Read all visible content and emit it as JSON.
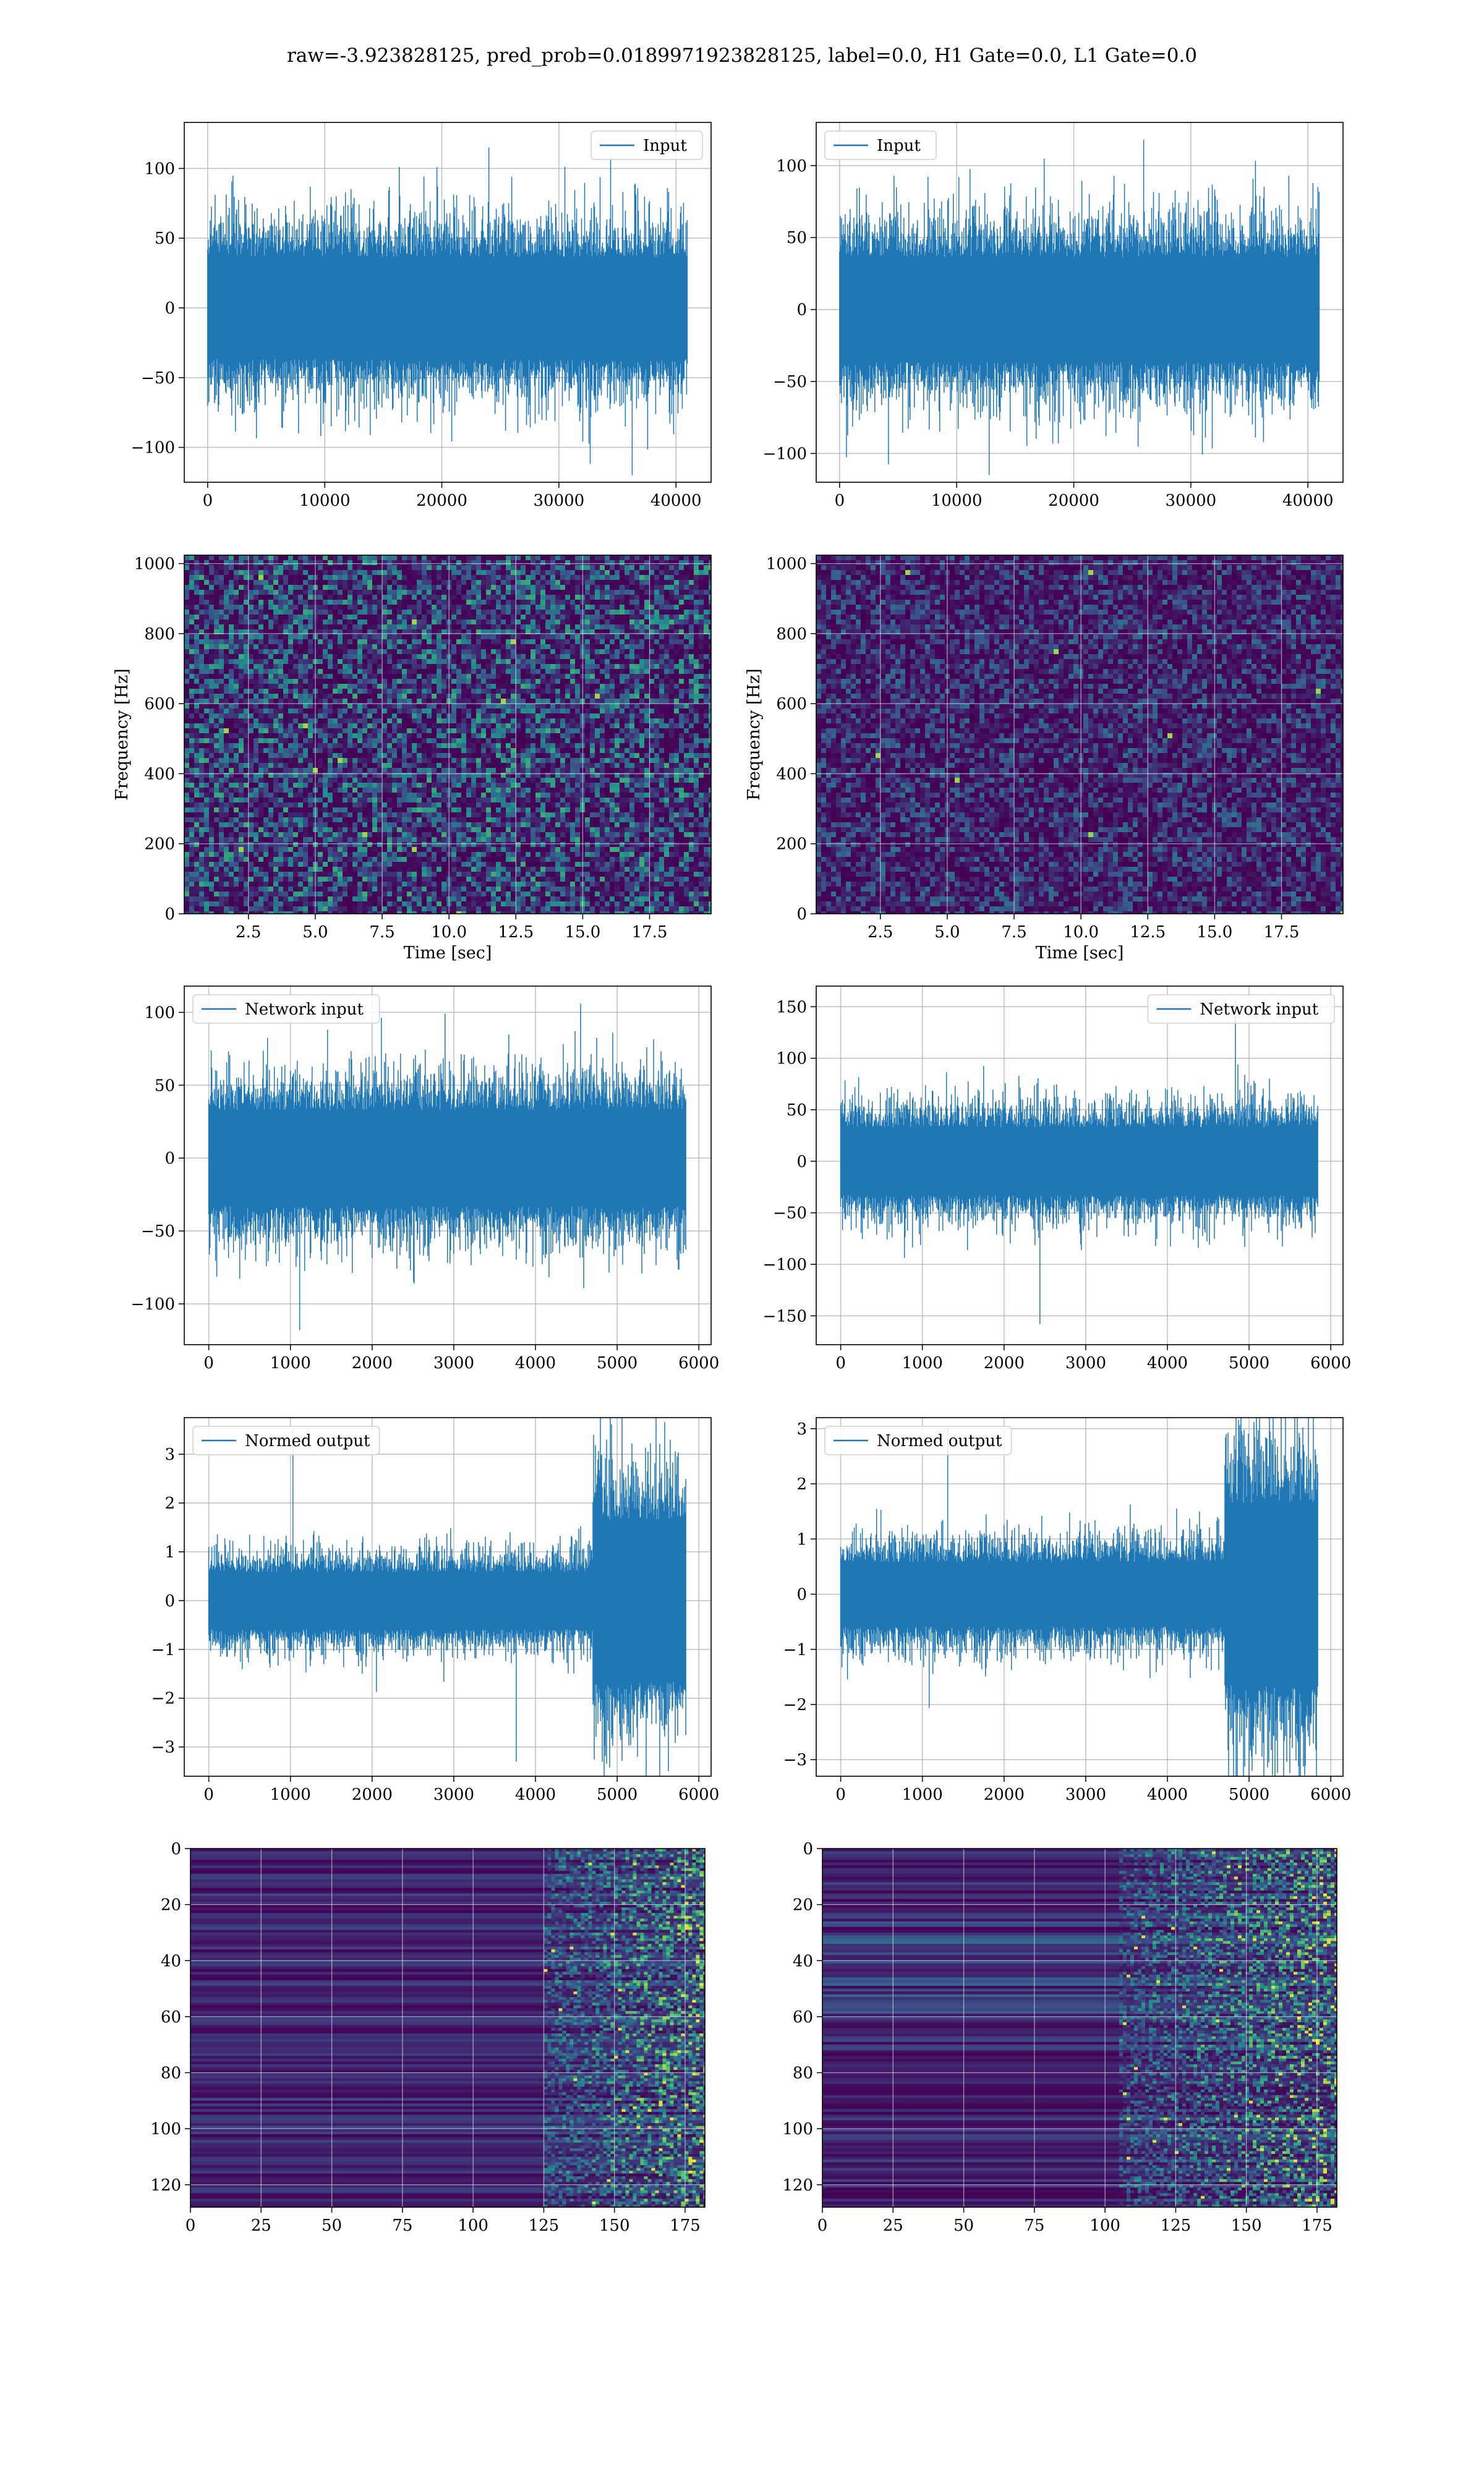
{
  "figure": {
    "suptitle": "raw=-3.923828125, pred_prob=0.0189971923828125, label=0.0, H1 Gate=0.0, L1 Gate=0.0"
  },
  "colors": {
    "series": "#1f77b4",
    "grid": "#b0b0b0",
    "heatmap_low": "#440154",
    "heatmap_mid": "#21918c",
    "heatmap_high": "#fde725"
  },
  "chart_data": [
    {
      "id": "input-left",
      "type": "line",
      "row": 1,
      "col": "left",
      "legend": "Input",
      "legend_loc": "upper right",
      "xlim": [
        -2000,
        43000
      ],
      "ylim": [
        -125,
        133
      ],
      "xticks": [
        0,
        10000,
        20000,
        30000,
        40000
      ],
      "yticks": [
        -100,
        -50,
        0,
        50,
        100
      ],
      "xlabel": "",
      "ylabel": "",
      "grid": true,
      "signal": {
        "n_samples": 40960,
        "typical_range": [
          -50,
          50
        ],
        "peaks": [
          115,
          -120
        ]
      }
    },
    {
      "id": "input-right",
      "type": "line",
      "row": 1,
      "col": "right",
      "legend": "Input",
      "legend_loc": "upper left",
      "xlim": [
        -2000,
        43000
      ],
      "ylim": [
        -120,
        130
      ],
      "xticks": [
        0,
        10000,
        20000,
        30000,
        40000
      ],
      "yticks": [
        -100,
        -50,
        0,
        50,
        100
      ],
      "xlabel": "",
      "ylabel": "",
      "grid": true,
      "signal": {
        "n_samples": 40960,
        "typical_range": [
          -50,
          50
        ],
        "peaks": [
          118,
          -115
        ]
      }
    },
    {
      "id": "spectrogram-left",
      "type": "heatmap",
      "row": 2,
      "col": "left",
      "xlim": [
        0.1,
        19.8
      ],
      "ylim": [
        0,
        1024
      ],
      "xticks": [
        2.5,
        5.0,
        7.5,
        10.0,
        12.5,
        15.0,
        17.5
      ],
      "yticks": [
        0,
        200,
        400,
        600,
        800,
        1000
      ],
      "xlabel": "Time [sec]",
      "ylabel": "Frequency [Hz]",
      "grid": true,
      "colormap": "viridis"
    },
    {
      "id": "spectrogram-right",
      "type": "heatmap",
      "row": 2,
      "col": "right",
      "xlim": [
        0.1,
        19.8
      ],
      "ylim": [
        0,
        1024
      ],
      "xticks": [
        2.5,
        5.0,
        7.5,
        10.0,
        12.5,
        15.0,
        17.5
      ],
      "yticks": [
        0,
        200,
        400,
        600,
        800,
        1000
      ],
      "xlabel": "Time [sec]",
      "ylabel": "Frequency [Hz]",
      "grid": true,
      "colormap": "viridis"
    },
    {
      "id": "network-input-left",
      "type": "line",
      "row": 3,
      "col": "left",
      "legend": "Network input",
      "legend_loc": "upper left",
      "xlim": [
        -300,
        6150
      ],
      "ylim": [
        -128,
        118
      ],
      "xticks": [
        0,
        1000,
        2000,
        3000,
        4000,
        5000,
        6000
      ],
      "yticks": [
        -100,
        -50,
        0,
        50,
        100
      ],
      "xlabel": "",
      "ylabel": "",
      "grid": true,
      "signal": {
        "n_samples": 5840,
        "typical_range": [
          -45,
          45
        ],
        "peaks": [
          106,
          -118
        ]
      }
    },
    {
      "id": "network-input-right",
      "type": "line",
      "row": 3,
      "col": "right",
      "legend": "Network input",
      "legend_loc": "upper right",
      "xlim": [
        -300,
        6150
      ],
      "ylim": [
        -178,
        170
      ],
      "xticks": [
        0,
        1000,
        2000,
        3000,
        4000,
        5000,
        6000
      ],
      "yticks": [
        -150,
        -100,
        -50,
        0,
        50,
        100,
        150
      ],
      "xlabel": "",
      "ylabel": "",
      "grid": true,
      "signal": {
        "n_samples": 5840,
        "typical_range": [
          -45,
          45
        ],
        "peaks": [
          157,
          -158
        ]
      }
    },
    {
      "id": "normed-output-left",
      "type": "line",
      "row": 4,
      "col": "left",
      "legend": "Normed output",
      "legend_loc": "upper left",
      "xlim": [
        -300,
        6150
      ],
      "ylim": [
        -3.6,
        3.75
      ],
      "xticks": [
        0,
        1000,
        2000,
        3000,
        4000,
        5000,
        6000
      ],
      "yticks": [
        -3,
        -2,
        -1,
        0,
        1,
        2,
        3
      ],
      "xlabel": "",
      "ylabel": "",
      "grid": true,
      "signal": {
        "n_samples": 5840,
        "typical_range": [
          -0.8,
          0.8
        ],
        "burst_start": 4700,
        "burst_range": [
          -2.0,
          2.0
        ],
        "peaks": [
          3.5,
          -3.3
        ]
      }
    },
    {
      "id": "normed-output-right",
      "type": "line",
      "row": 4,
      "col": "right",
      "legend": "Normed output",
      "legend_loc": "upper left",
      "xlim": [
        -300,
        6150
      ],
      "ylim": [
        -3.3,
        3.2
      ],
      "xticks": [
        0,
        1000,
        2000,
        3000,
        4000,
        5000,
        6000
      ],
      "yticks": [
        -3,
        -2,
        -1,
        0,
        1,
        2,
        3
      ],
      "xlabel": "",
      "ylabel": "",
      "grid": true,
      "signal": {
        "n_samples": 5840,
        "typical_range": [
          -0.8,
          0.8
        ],
        "burst_start": 4700,
        "burst_range": [
          -2.0,
          2.0
        ],
        "peaks": [
          3.0,
          -2.9
        ]
      }
    },
    {
      "id": "feature-map-left",
      "type": "heatmap",
      "row": 5,
      "col": "left",
      "xlim": [
        0,
        182
      ],
      "ylim": [
        128,
        0
      ],
      "xticks": [
        0,
        25,
        50,
        75,
        100,
        125,
        150,
        175
      ],
      "yticks": [
        0,
        20,
        40,
        60,
        80,
        100,
        120
      ],
      "xlabel": "",
      "ylabel": "",
      "grid": true,
      "colormap": "viridis",
      "active_from": 125
    },
    {
      "id": "feature-map-right",
      "type": "heatmap",
      "row": 5,
      "col": "right",
      "xlim": [
        0,
        182
      ],
      "ylim": [
        128,
        0
      ],
      "xticks": [
        0,
        25,
        50,
        75,
        100,
        125,
        150,
        175
      ],
      "yticks": [
        0,
        20,
        40,
        60,
        80,
        100,
        120
      ],
      "xlabel": "",
      "ylabel": "",
      "grid": true,
      "colormap": "viridis",
      "active_from": 105
    }
  ]
}
